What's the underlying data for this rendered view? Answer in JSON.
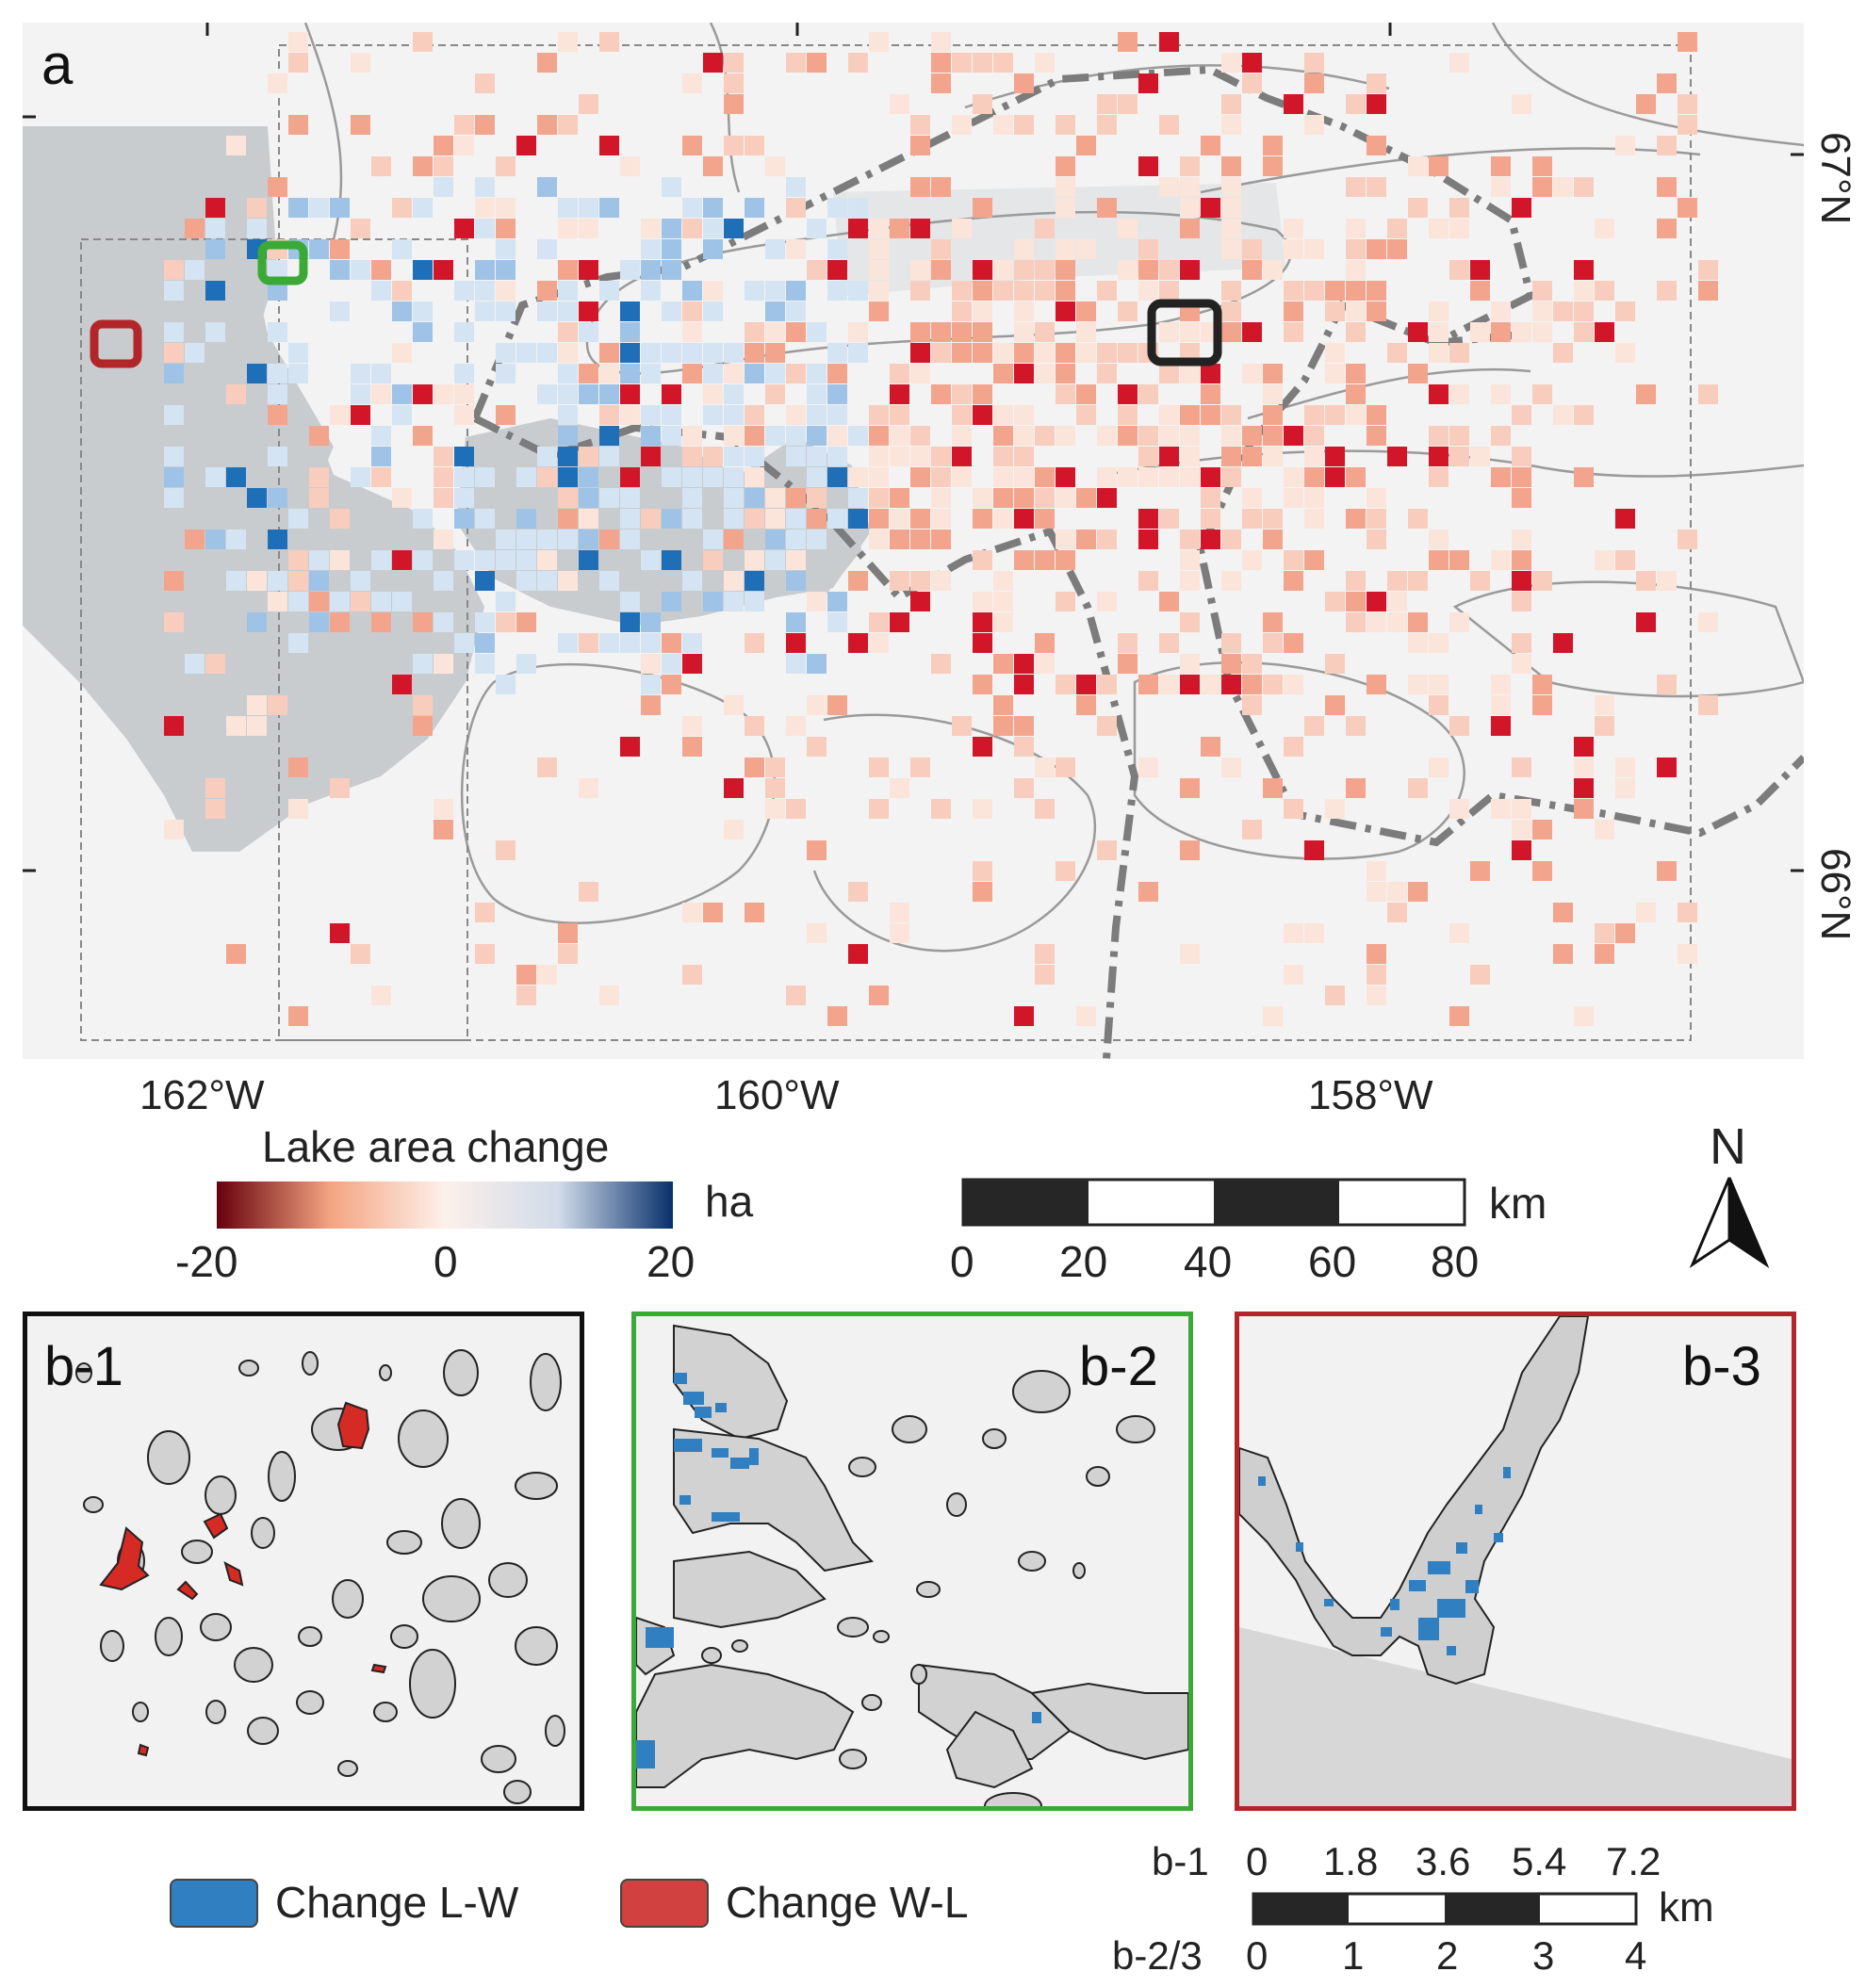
{
  "panel_a": {
    "label": "a",
    "lon_labels": [
      "162°W",
      "160°W",
      "158°W"
    ],
    "lat_labels": [
      "67°N",
      "66°N"
    ]
  },
  "colorbar": {
    "title": "Lake area change",
    "unit": "ha",
    "ticks": [
      "-20",
      "0",
      "20"
    ],
    "colors": [
      "#67000d",
      "#f4a582",
      "#fdf0ea",
      "#d1dbea",
      "#08306b"
    ]
  },
  "scalebar_main": {
    "ticks": [
      "0",
      "20",
      "40",
      "60",
      "80"
    ],
    "unit": "km"
  },
  "north_arrow": {
    "label": "N",
    "icon": "north-arrow-icon"
  },
  "insets": [
    {
      "label": "b-1",
      "frame_color": "#111111",
      "marker_color": "#222222"
    },
    {
      "label": "b-2",
      "frame_color": "#3aa935",
      "marker_color": "#3aa935"
    },
    {
      "label": "b-3",
      "frame_color": "#b2262a",
      "marker_color": "#b2262a"
    }
  ],
  "legend": {
    "items": [
      {
        "label": "Change L-W",
        "color": "#2f7fc1"
      },
      {
        "label": "Change W-L",
        "color": "#d0413f"
      }
    ]
  },
  "scalebar_insets": {
    "row1_name": "b-1",
    "row1_ticks": [
      "0",
      "1.8",
      "3.6",
      "5.4",
      "7.2"
    ],
    "row2_name": "b-2/3",
    "row2_ticks": [
      "0",
      "1",
      "2",
      "3",
      "4"
    ],
    "unit": "km"
  }
}
